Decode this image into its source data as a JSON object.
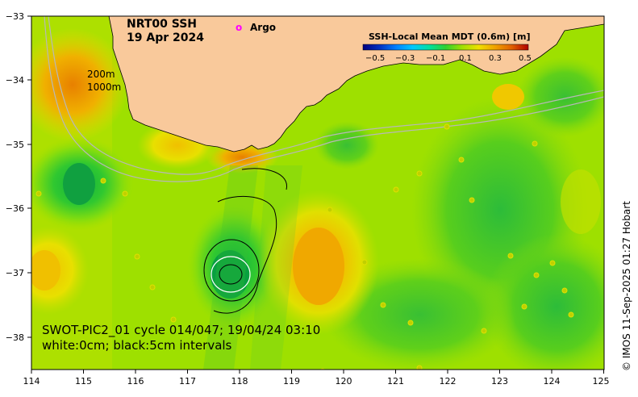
{
  "map": {
    "title": "NRT00 SSH",
    "date": "19 Apr 2024",
    "legend_argo": "Argo",
    "argo_marker": "o",
    "isobath_200": "200m",
    "isobath_1000": "1000m",
    "swot_line1": "SWOT-PIC2_01 cycle 014/047; 19/04/24 03:10",
    "swot_line2": "white:0cm; black:5cm intervals",
    "credit": "© IMOS 11-Sep-2025 01:27 Hobart"
  },
  "colorbar": {
    "title": "SSH-Local Mean MDT (0.6m) [m]",
    "tick_labels": [
      "−0.5",
      "−0.3",
      "−0.1",
      "0.1",
      "0.3",
      "0.5"
    ],
    "colors": [
      "#000080",
      "#0030c0",
      "#0080ff",
      "#00c8ff",
      "#00e0a0",
      "#30d030",
      "#a0e000",
      "#f0e000",
      "#f0a000",
      "#e06000",
      "#b00000"
    ]
  },
  "axes": {
    "x_labels": [
      "114",
      "115",
      "116",
      "117",
      "118",
      "119",
      "120",
      "121",
      "122",
      "123",
      "124",
      "125"
    ],
    "y_labels": [
      "−33",
      "−34",
      "−35",
      "−36",
      "−37",
      "−38"
    ],
    "lon_range": [
      114,
      125
    ],
    "lat_range": [
      -38.5,
      -33
    ]
  },
  "colors": {
    "land": "#f9c99b",
    "sea_base": "#9ee000",
    "argo": "#ff00ff"
  }
}
